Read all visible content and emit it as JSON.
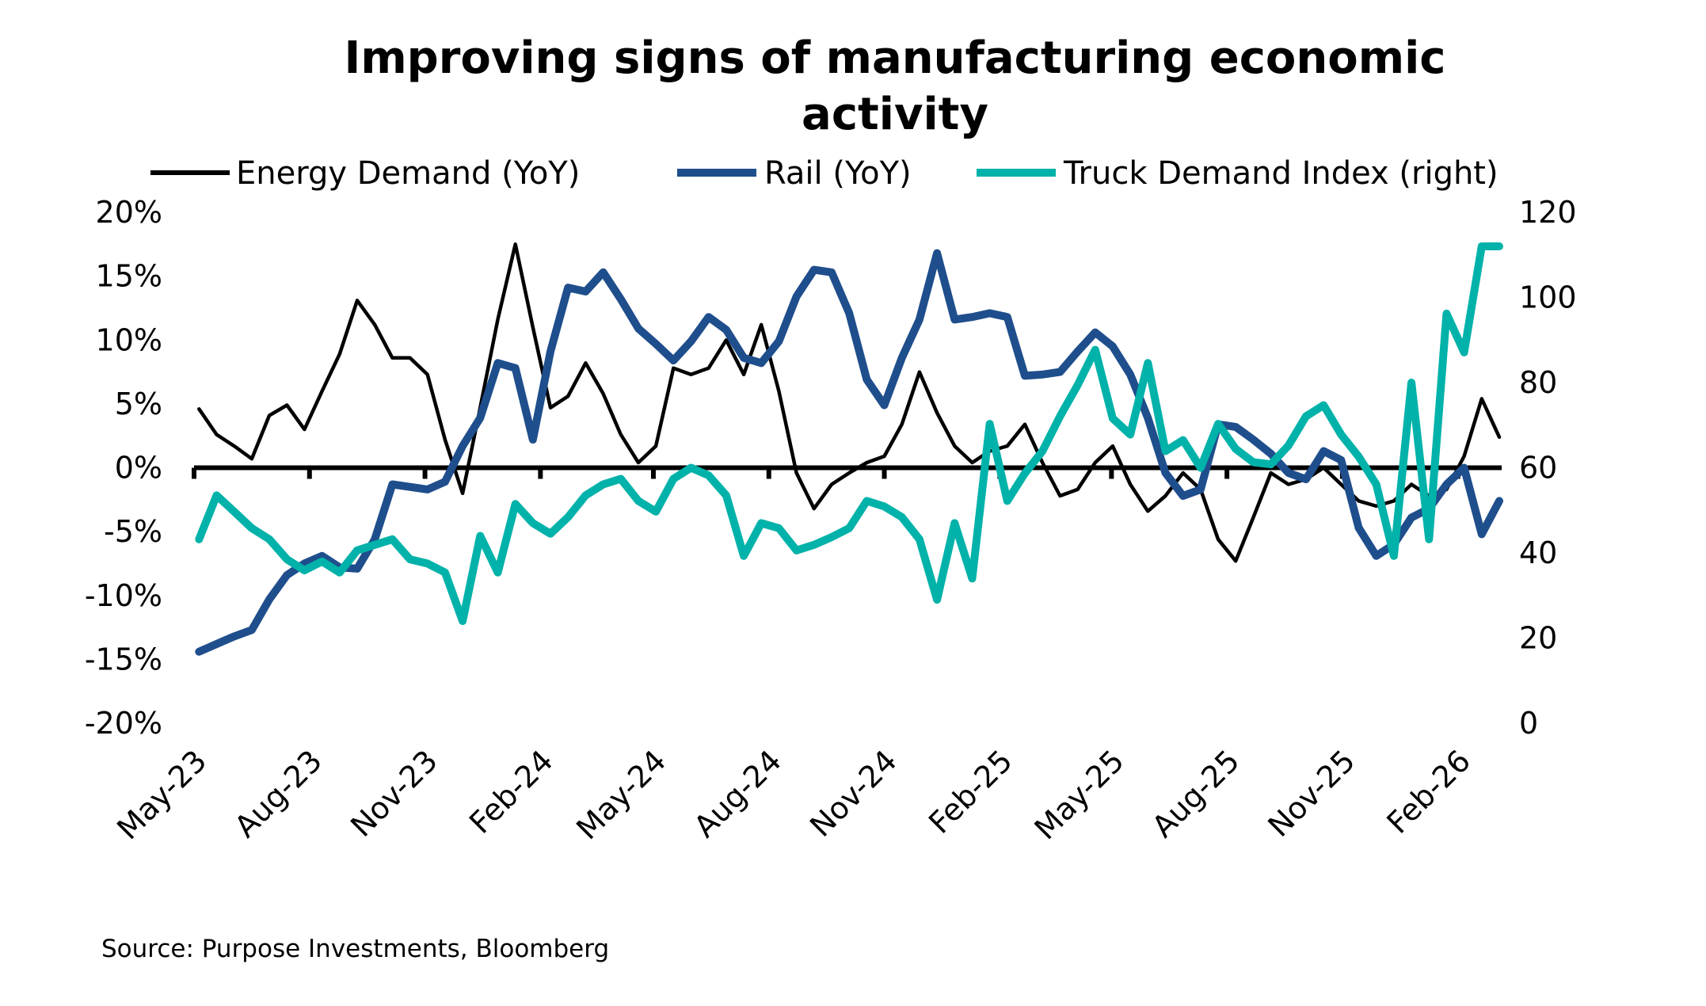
{
  "chart_data": {
    "type": "line",
    "title_lines": [
      "Improving signs of manufacturing economic",
      "activity"
    ],
    "source": "Source: Purpose Investments, Bloomberg",
    "legend_placement": "top",
    "grid": false,
    "y_left": {
      "ticks": [
        "20%",
        "15%",
        "10%",
        "5%",
        "0%",
        "-5%",
        "-10%",
        "-15%",
        "-20%"
      ],
      "range": [
        -20,
        20
      ],
      "unit": "%"
    },
    "y_right": {
      "ticks": [
        "120",
        "100",
        "80",
        "60",
        "40",
        "20",
        "0"
      ],
      "range": [
        0,
        120
      ]
    },
    "x_ticks": [
      {
        "label": "May-23",
        "date": "2023-05-01"
      },
      {
        "label": "Aug-23",
        "date": "2023-08-01"
      },
      {
        "label": "Nov-23",
        "date": "2023-11-01"
      },
      {
        "label": "Feb-24",
        "date": "2024-02-01"
      },
      {
        "label": "May-24",
        "date": "2024-05-01"
      },
      {
        "label": "Aug-24",
        "date": "2024-08-01"
      },
      {
        "label": "Nov-24",
        "date": "2024-11-01"
      },
      {
        "label": "Feb-25",
        "date": "2025-02-01"
      },
      {
        "label": "May-25",
        "date": "2025-05-01"
      },
      {
        "label": "Aug-25",
        "date": "2025-08-01"
      },
      {
        "label": "Nov-25",
        "date": "2025-11-01"
      },
      {
        "label": "Feb-26",
        "date": "2026-02-01"
      }
    ],
    "x": [
      "2023-05-05",
      "2023-05-19",
      "2023-06-02",
      "2023-06-16",
      "2023-06-30",
      "2023-07-14",
      "2023-07-28",
      "2023-08-11",
      "2023-08-25",
      "2023-09-08",
      "2023-09-22",
      "2023-10-06",
      "2023-10-20",
      "2023-11-03",
      "2023-11-17",
      "2023-12-01",
      "2023-12-15",
      "2023-12-29",
      "2024-01-12",
      "2024-01-26",
      "2024-02-09",
      "2024-02-23",
      "2024-03-08",
      "2024-03-22",
      "2024-04-05",
      "2024-04-19",
      "2024-05-03",
      "2024-05-17",
      "2024-05-31",
      "2024-06-14",
      "2024-06-28",
      "2024-07-12",
      "2024-07-26",
      "2024-08-09",
      "2024-08-23",
      "2024-09-06",
      "2024-09-20",
      "2024-10-04",
      "2024-10-18",
      "2024-11-01",
      "2024-11-15",
      "2024-11-29",
      "2024-12-13",
      "2024-12-27",
      "2025-01-10",
      "2025-01-24",
      "2025-02-07",
      "2025-02-21",
      "2025-03-07",
      "2025-03-21",
      "2025-04-04",
      "2025-04-18",
      "2025-05-02",
      "2025-05-16",
      "2025-05-30",
      "2025-06-13",
      "2025-06-27",
      "2025-07-11",
      "2025-07-25",
      "2025-08-08",
      "2025-08-22",
      "2025-09-05",
      "2025-09-19",
      "2025-10-03",
      "2025-10-17",
      "2025-10-31",
      "2025-11-14",
      "2025-11-28",
      "2025-12-12",
      "2025-12-26",
      "2026-01-09",
      "2026-01-23",
      "2026-02-06",
      "2026-02-20",
      "2026-03-06"
    ],
    "series": [
      {
        "name": "Energy Demand (YoY)",
        "axis": "left",
        "color": "#000000",
        "values": [
          4.6,
          2.6,
          1.7,
          0.7,
          4.1,
          4.9,
          3.0,
          6.0,
          8.9,
          13.1,
          11.2,
          8.6,
          8.6,
          7.3,
          2.2,
          -2.0,
          4.7,
          11.6,
          17.5,
          11.0,
          4.7,
          5.6,
          8.2,
          5.8,
          2.6,
          0.4,
          1.7,
          7.8,
          7.3,
          7.8,
          10.0,
          7.3,
          11.2,
          6.0,
          -0.4,
          -3.2,
          -1.3,
          -0.4,
          0.4,
          0.9,
          3.4,
          7.5,
          4.3,
          1.7,
          0.4,
          1.3,
          1.7,
          3.4,
          0.4,
          -2.2,
          -1.7,
          0.4,
          1.7,
          -1.3,
          -3.4,
          -2.2,
          -0.4,
          -1.7,
          -5.6,
          -7.3,
          -3.9,
          -0.4,
          -1.3,
          -0.9,
          0.0,
          -1.3,
          -2.6,
          -3.0,
          -2.6,
          -1.3,
          -2.2,
          -1.7,
          0.9,
          5.4,
          2.4
        ]
      },
      {
        "name": "Rail (YoY)",
        "axis": "left",
        "color": "#1f4e8c",
        "values": [
          -14.4,
          -13.8,
          -13.2,
          -12.7,
          -10.3,
          -8.4,
          -7.5,
          -6.9,
          -7.8,
          -7.9,
          -5.6,
          -1.3,
          -1.5,
          -1.7,
          -1.1,
          1.7,
          3.9,
          8.2,
          7.8,
          2.2,
          9.1,
          14.1,
          13.8,
          15.3,
          13.2,
          10.9,
          9.7,
          8.4,
          9.9,
          11.8,
          10.8,
          8.6,
          8.2,
          9.9,
          13.4,
          15.5,
          15.3,
          12.1,
          6.9,
          4.9,
          8.6,
          11.6,
          16.8,
          11.6,
          11.8,
          12.1,
          11.8,
          7.2,
          7.3,
          7.5,
          9.1,
          10.6,
          9.5,
          7.3,
          3.9,
          -0.4,
          -2.2,
          -1.7,
          3.4,
          3.2,
          2.2,
          1.1,
          -0.4,
          -0.9,
          1.3,
          0.6,
          -4.7,
          -6.9,
          -6.0,
          -3.9,
          -3.2,
          -1.3,
          0.0,
          -5.2,
          -2.6
        ]
      },
      {
        "name": "Truck Demand Index (right)",
        "axis": "right",
        "color": "#00b2a9",
        "values": [
          43.2,
          53.5,
          49.7,
          45.8,
          43.2,
          38.5,
          35.9,
          38.0,
          35.4,
          40.6,
          41.9,
          43.2,
          38.5,
          37.5,
          35.4,
          24.0,
          44.0,
          35.4,
          51.5,
          47.0,
          44.5,
          48.4,
          53.5,
          56.1,
          57.4,
          52.2,
          49.7,
          57.4,
          60.0,
          58.2,
          53.5,
          39.3,
          47.0,
          45.8,
          40.6,
          41.9,
          43.7,
          45.8,
          52.2,
          50.9,
          48.4,
          43.2,
          29.0,
          47.0,
          34.0,
          70.3,
          52.2,
          58.7,
          63.9,
          72.1,
          79.4,
          87.7,
          71.6,
          67.8,
          84.6,
          63.9,
          66.5,
          60.0,
          70.3,
          64.4,
          61.3,
          60.8,
          65.2,
          72.1,
          74.7,
          67.8,
          62.6,
          56.1,
          39.3,
          80.0,
          43.2,
          96.2,
          87.1,
          112.0,
          112.0
        ]
      }
    ]
  }
}
